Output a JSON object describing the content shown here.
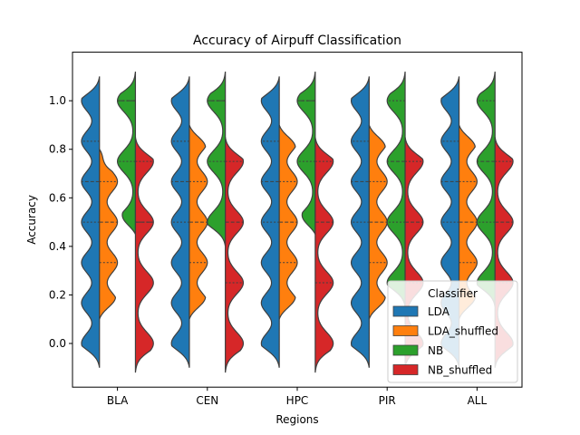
{
  "chart_data": {
    "type": "violin",
    "title": "Accuracy of Airpuff Classification",
    "xlabel": "Regions",
    "ylabel": "Accuracy",
    "categories": [
      "BLA",
      "CEN",
      "HPC",
      "PIR",
      "ALL"
    ],
    "ylim": [
      -0.18,
      1.2
    ],
    "yticks": [
      0.0,
      0.2,
      0.4,
      0.6,
      0.8,
      1.0
    ],
    "ytick_labels": [
      "0.0",
      "0.2",
      "0.4",
      "0.6",
      "0.8",
      "1.0"
    ],
    "split": true,
    "legend": {
      "title": "Classifier",
      "position": "lower-right"
    },
    "series": [
      {
        "name": "LDA",
        "color": "#1f77b4",
        "pairs_with": "LDA_shuffled",
        "side": "left",
        "quartiles": [
          [
            0.5,
            0.667,
            0.833
          ],
          [
            0.5,
            0.667,
            0.833
          ],
          [
            0.5,
            0.667,
            0.833
          ],
          [
            0.5,
            0.667,
            0.833
          ],
          [
            0.5,
            0.667,
            0.833
          ]
        ],
        "range": [
          [
            -0.1,
            1.1
          ],
          [
            -0.1,
            1.1
          ],
          [
            -0.1,
            1.1
          ],
          [
            -0.1,
            1.1
          ],
          [
            -0.1,
            1.1
          ]
        ],
        "modes": [
          0.0,
          0.167,
          0.333,
          0.5,
          0.667,
          0.833,
          1.0
        ]
      },
      {
        "name": "LDA_shuffled",
        "color": "#ff7f0e",
        "pairs_with": "LDA",
        "side": "right",
        "quartiles": [
          [
            0.333,
            0.5,
            0.667
          ],
          [
            0.333,
            0.5,
            0.667
          ],
          [
            0.333,
            0.5,
            0.667
          ],
          [
            0.333,
            0.5,
            0.667
          ],
          [
            0.333,
            0.5,
            0.667
          ]
        ],
        "range": [
          [
            0.1,
            0.8
          ],
          [
            0.1,
            0.9
          ],
          [
            0.1,
            0.9
          ],
          [
            0.1,
            0.9
          ],
          [
            0.1,
            0.9
          ]
        ],
        "modes": [
          0.167,
          0.333,
          0.5,
          0.667,
          0.833
        ]
      },
      {
        "name": "NB",
        "color": "#2ca02c",
        "pairs_with": "NB_shuffled",
        "side": "left",
        "quartiles": [
          [
            0.75,
            1.0,
            1.0
          ],
          [
            0.75,
            1.0,
            1.0
          ],
          [
            0.75,
            1.0,
            1.0
          ],
          [
            0.5,
            0.75,
            1.0
          ],
          [
            0.5,
            0.75,
            1.0
          ]
        ],
        "range": [
          [
            0.45,
            1.12
          ],
          [
            0.4,
            1.12
          ],
          [
            0.45,
            1.12
          ],
          [
            0.15,
            1.12
          ],
          [
            0.15,
            1.12
          ]
        ],
        "modes": [
          0.25,
          0.5,
          0.75,
          1.0
        ]
      },
      {
        "name": "NB_shuffled",
        "color": "#d62728",
        "pairs_with": "NB",
        "side": "right",
        "quartiles": [
          [
            0.5,
            0.5,
            0.75
          ],
          [
            0.25,
            0.5,
            0.75
          ],
          [
            0.25,
            0.5,
            0.75
          ],
          [
            0.25,
            0.5,
            0.75
          ],
          [
            0.25,
            0.5,
            0.75
          ]
        ],
        "range": [
          [
            -0.12,
            0.85
          ],
          [
            -0.12,
            0.85
          ],
          [
            -0.12,
            0.85
          ],
          [
            -0.1,
            0.85
          ],
          [
            -0.1,
            0.85
          ]
        ],
        "modes": [
          0.0,
          0.25,
          0.5,
          0.75
        ]
      }
    ]
  }
}
